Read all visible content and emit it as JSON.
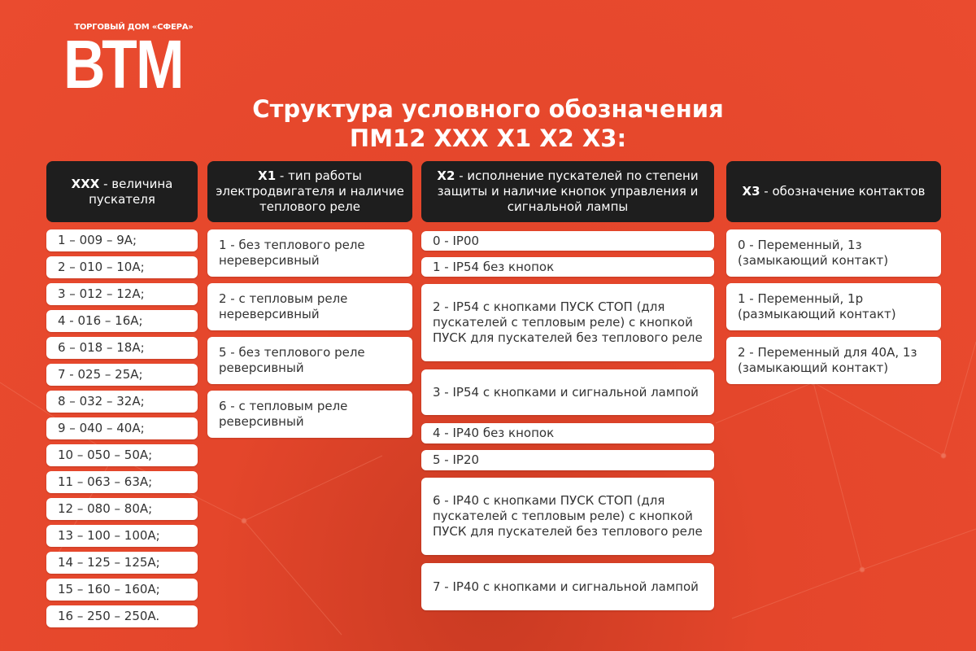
{
  "logo": {
    "subtitle": "ТОРГОВЫЙ ДОМ «СФЕРА»",
    "mark": "ВТМ"
  },
  "title": {
    "line1": "Структура условного обозначения",
    "line2": "ПМ12 XXX X1 X2 X3:"
  },
  "colors": {
    "background": "#ea4b2f",
    "header": "#1e1e1e",
    "card": "#ffffff"
  },
  "columns": [
    {
      "code": "XXX",
      "desc": " - величина пускателя",
      "items": [
        "1 – 009 – 9A;",
        "2 – 010 – 10A;",
        "3 – 012 – 12A;",
        "4 - 016 – 16A;",
        "6 – 018 – 18A;",
        "7 - 025 – 25A;",
        "8 – 032 – 32A;",
        "9 – 040 – 40A;",
        "10 – 050 – 50A;",
        "11 – 063 – 63A;",
        "12 – 080 – 80A;",
        "13 – 100 – 100A;",
        "14 – 125 – 125A;",
        "15 – 160 – 160A;",
        "16 – 250 – 250A."
      ]
    },
    {
      "code": "X1",
      "desc": " - тип работы электродвигателя и наличие теплового реле",
      "items": [
        "1 - без теплового реле нереверсивный",
        "2 - с тепловым реле нереверсивный",
        "5 - без теплового реле реверсивный",
        "6 - с тепловым реле реверсивный"
      ]
    },
    {
      "code": "X2",
      "desc": " - исполнение пускателей по степени защиты и наличие кнопок управления и сигнальной лампы",
      "items": [
        "0 - IP00",
        "1 - IP54 без кнопок",
        "2 - IP54 с кнопками ПУСК СТОП (для пускателей с тепловым реле) с кнопкой ПУСК для пускателей без теплового реле",
        "3 - IP54 с кнопками и сигнальной лампой",
        "4 - IP40 без кнопок",
        "5 - IP20",
        "6 - IP40 с кнопками ПУСК СТОП (для пускателей с тепловым реле) с кнопкой ПУСК для пускателей без теплового реле",
        "7 - IP40 с кнопками и сигнальной лампой"
      ]
    },
    {
      "code": "X3",
      "desc": " - обозначение контактов",
      "items": [
        "0 - Переменный, 1з (замыкающий контакт)",
        "1 - Переменный, 1р (размыкающий контакт)",
        "2 - Переменный для 40А, 1з (замыкающий контакт)"
      ]
    }
  ]
}
